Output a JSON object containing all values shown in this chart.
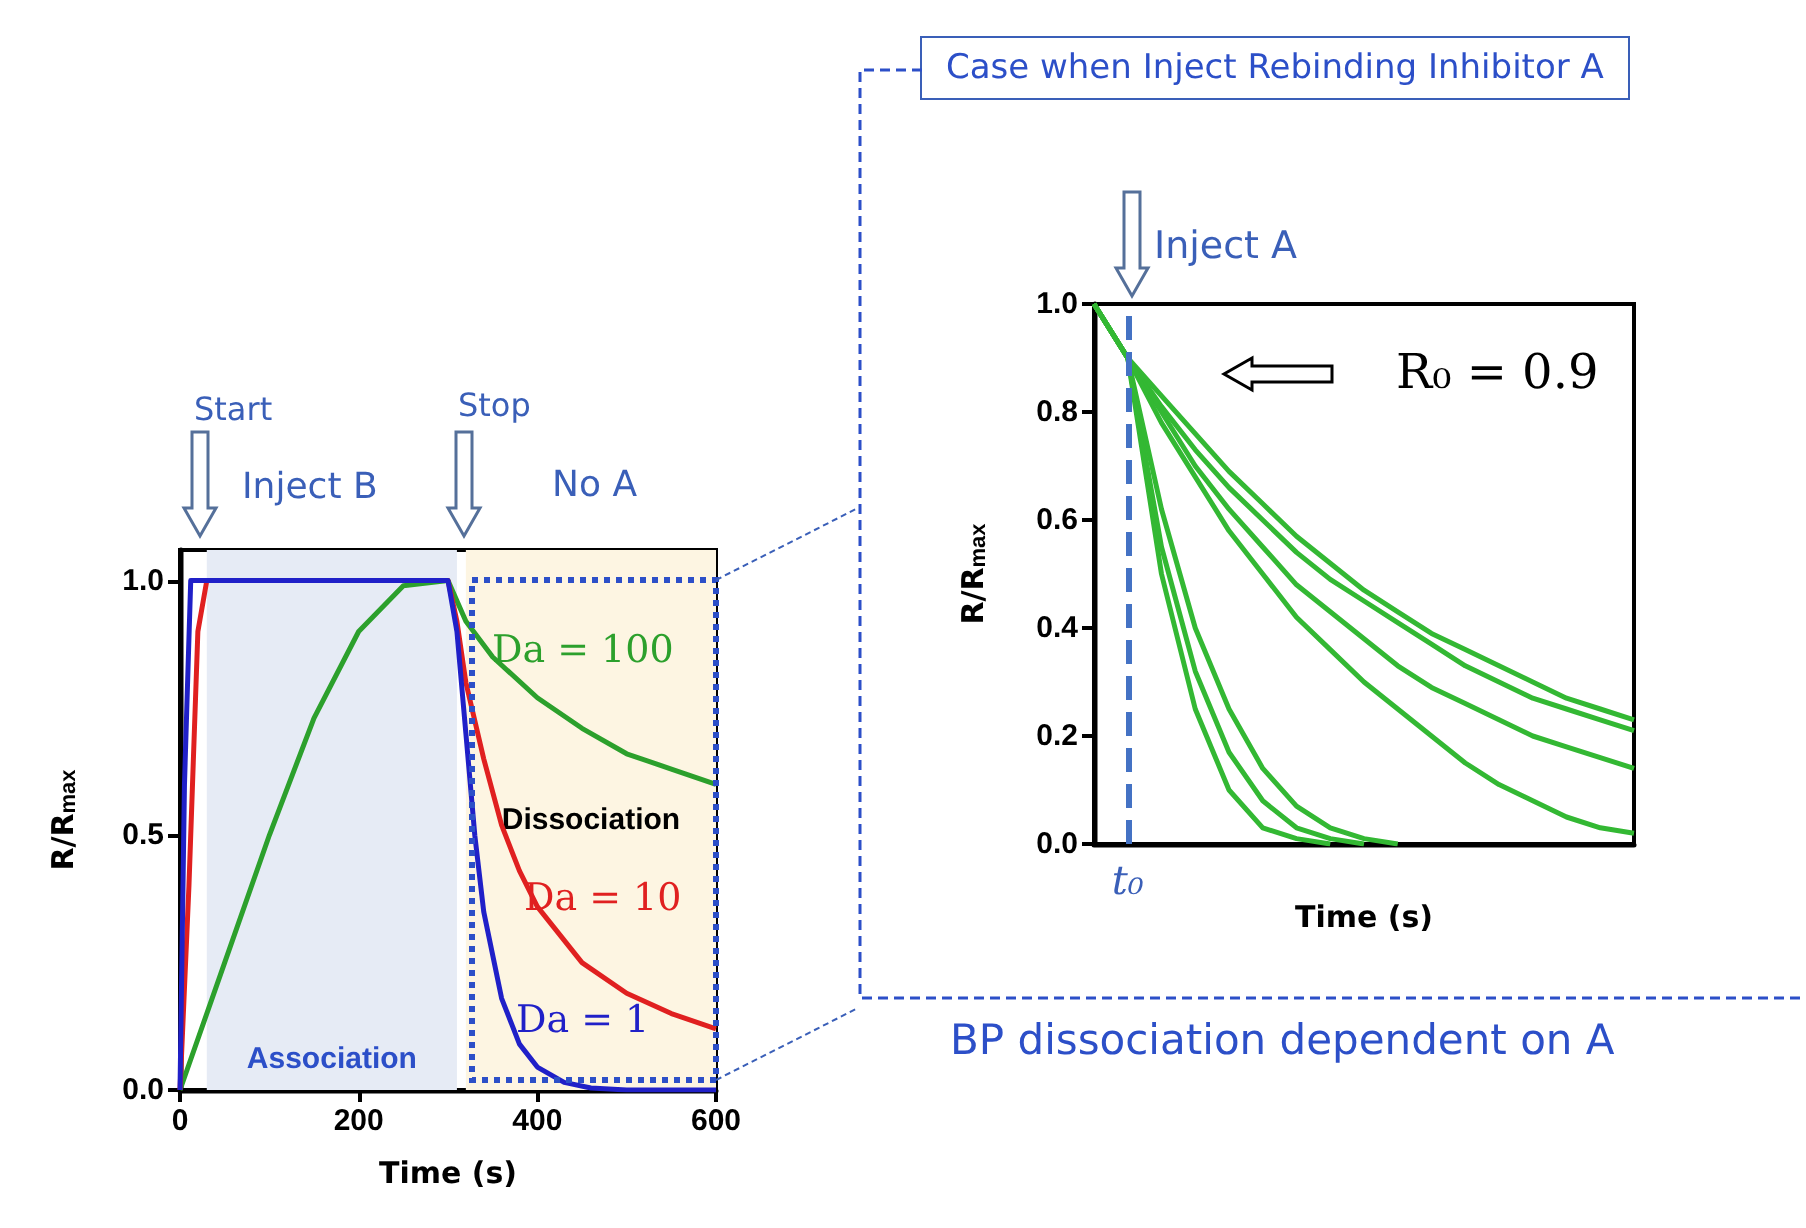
{
  "chart_data": [
    {
      "type": "line",
      "xlabel": "Time (s)",
      "ylabel": "R/R$_{max}$",
      "xlim": [
        0,
        600
      ],
      "ylim": [
        0,
        1.06
      ],
      "xticks": [
        0,
        200,
        400,
        600
      ],
      "yticks": [
        {
          "value": 0,
          "label": "0.0"
        },
        {
          "value": 0.5,
          "label": "0.5"
        },
        {
          "value": 1,
          "label": "1.0"
        }
      ],
      "grid": false,
      "legend": false,
      "bands": [
        {
          "axis": "x",
          "from": 30,
          "to": 310,
          "label": "Association",
          "color": "#e6ebf5"
        },
        {
          "axis": "x",
          "from": 320,
          "to": 600,
          "label": "Dissociation",
          "color": "#fdf5e2"
        }
      ],
      "annotations": [
        "Start",
        "Stop",
        "Inject B",
        "No A"
      ],
      "series": [
        {
          "name": "Da = 100",
          "color": "#2ca02c",
          "x": [
            0,
            50,
            100,
            150,
            200,
            250,
            300,
            320,
            350,
            400,
            450,
            500,
            550,
            600
          ],
          "values": [
            0,
            0.25,
            0.5,
            0.73,
            0.9,
            0.99,
            1,
            0.92,
            0.85,
            0.77,
            0.71,
            0.66,
            0.63,
            0.6
          ]
        },
        {
          "name": "Da = 10",
          "color": "#e02020",
          "x": [
            0,
            10,
            20,
            30,
            300,
            310,
            320,
            340,
            360,
            380,
            400,
            450,
            500,
            550,
            600
          ],
          "values": [
            0,
            0.4,
            0.9,
            1,
            1,
            0.92,
            0.8,
            0.65,
            0.52,
            0.43,
            0.36,
            0.25,
            0.19,
            0.15,
            0.12
          ]
        },
        {
          "name": "Da = 1",
          "color": "#2020c8",
          "x": [
            0,
            5,
            12,
            300,
            310,
            320,
            330,
            340,
            360,
            380,
            400,
            430,
            460,
            500,
            600
          ],
          "values": [
            0,
            0.6,
            1,
            1,
            0.9,
            0.7,
            0.5,
            0.35,
            0.18,
            0.09,
            0.045,
            0.015,
            0.004,
            0,
            0
          ]
        }
      ]
    },
    {
      "type": "line",
      "title": "Case when Inject Rebinding Inhibitor A",
      "xlabel": "Time (s)",
      "ylabel": "R/R$_{max}$",
      "ylim": [
        0,
        1
      ],
      "yticks": [
        {
          "value": 0,
          "label": "0.0"
        },
        {
          "value": 0.2,
          "label": "0.2"
        },
        {
          "value": 0.4,
          "label": "0.4"
        },
        {
          "value": 0.6,
          "label": "0.6"
        },
        {
          "value": 0.8,
          "label": "0.8"
        },
        {
          "value": 1,
          "label": "1.0"
        }
      ],
      "grid": false,
      "legend": false,
      "categories": [
        null,
        "t₀",
        null,
        null,
        null,
        null,
        null,
        null,
        null,
        null,
        null,
        null,
        null,
        null,
        null,
        null,
        null
      ],
      "ref_lines": [
        {
          "axis": "x",
          "value": "t₀",
          "color": "#4472c4",
          "line_style": "dashed"
        }
      ],
      "annotations": [
        "Inject A",
        "R₀ = 0.9",
        "BP dissociation dependent on A"
      ],
      "series": [
        {
          "color": "#33b833",
          "values": [
            1,
            0.9,
            0.83,
            0.76,
            0.69,
            0.63,
            0.57,
            0.52,
            0.47,
            0.43,
            0.39,
            0.36,
            0.33,
            0.3,
            0.27,
            0.25,
            0.23
          ]
        },
        {
          "color": "#33b833",
          "values": [
            1,
            0.9,
            0.81,
            0.73,
            0.66,
            0.6,
            0.54,
            0.49,
            0.45,
            0.41,
            0.37,
            0.33,
            0.3,
            0.27,
            0.25,
            0.23,
            0.21
          ]
        },
        {
          "color": "#33b833",
          "values": [
            1,
            0.9,
            0.8,
            0.7,
            0.62,
            0.55,
            0.48,
            0.43,
            0.38,
            0.33,
            0.29,
            0.26,
            0.23,
            0.2,
            0.18,
            0.16,
            0.14
          ]
        },
        {
          "color": "#33b833",
          "values": [
            1,
            0.9,
            0.78,
            0.68,
            0.58,
            0.5,
            0.42,
            0.36,
            0.3,
            0.25,
            0.2,
            0.15,
            0.11,
            0.08,
            0.05,
            0.03,
            0.02
          ]
        },
        {
          "color": "#33b833",
          "values": [
            1,
            0.9,
            0.62,
            0.4,
            0.25,
            0.14,
            0.07,
            0.03,
            0.01,
            0,
            null,
            null,
            null,
            null,
            null,
            null,
            null
          ]
        },
        {
          "color": "#33b833",
          "values": [
            1,
            0.9,
            0.55,
            0.32,
            0.17,
            0.08,
            0.03,
            0.01,
            0,
            null,
            null,
            null,
            null,
            null,
            null,
            null,
            null
          ]
        },
        {
          "color": "#33b833",
          "values": [
            1,
            0.9,
            0.5,
            0.25,
            0.1,
            0.03,
            0.01,
            0,
            null,
            null,
            null,
            null,
            null,
            null,
            null,
            null,
            null
          ]
        }
      ]
    }
  ]
}
